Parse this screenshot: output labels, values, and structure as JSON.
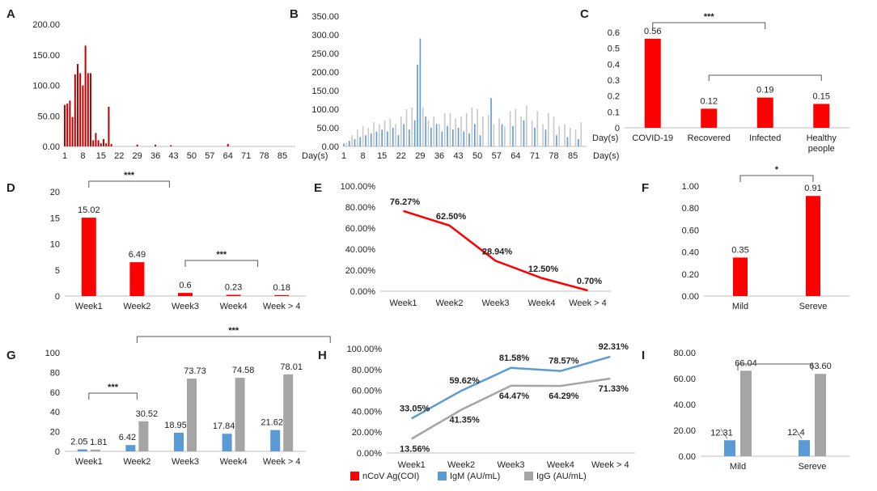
{
  "chart_data": [
    {
      "panel": "A",
      "type": "bar",
      "xlabel": "Day(s)",
      "xticks": [
        "1",
        "8",
        "15",
        "22",
        "29",
        "36",
        "43",
        "50",
        "57",
        "64",
        "71",
        "78",
        "85"
      ],
      "yticks": [
        "0.00",
        "50.00",
        "100.00",
        "150.00",
        "200.00"
      ],
      "ylim": [
        0,
        200
      ],
      "x": [
        1,
        2,
        3,
        4,
        5,
        6,
        7,
        8,
        9,
        10,
        11,
        12,
        13,
        14,
        15,
        16,
        17,
        18,
        19,
        29,
        36,
        42,
        64
      ],
      "values": [
        68,
        70,
        75,
        48,
        118,
        135,
        120,
        100,
        165,
        120,
        120,
        10,
        22,
        10,
        5,
        12,
        5,
        65,
        4,
        3,
        3,
        2,
        4
      ],
      "colors": {
        "bar": "#c00000"
      }
    },
    {
      "panel": "B",
      "type": "bar",
      "xlabel": "Day(s)",
      "xticks": [
        "1",
        "8",
        "15",
        "22",
        "29",
        "36",
        "43",
        "50",
        "57",
        "64",
        "71",
        "78",
        "85"
      ],
      "yticks": [
        "0.00",
        "50.00",
        "100.00",
        "150.00",
        "200.00",
        "250.00",
        "300.00",
        "350.00"
      ],
      "ylim": [
        0,
        350
      ],
      "series": [
        {
          "name": "blue",
          "x": [
            1,
            3,
            5,
            7,
            9,
            11,
            13,
            15,
            17,
            19,
            21,
            23,
            25,
            27,
            28,
            29,
            31,
            33,
            35,
            37,
            39,
            41,
            43,
            45,
            47,
            49,
            51,
            55,
            59,
            63,
            67,
            71,
            75,
            79,
            83,
            87
          ],
          "values": [
            8,
            15,
            20,
            25,
            30,
            35,
            40,
            45,
            40,
            50,
            30,
            60,
            45,
            70,
            220,
            290,
            80,
            50,
            60,
            40,
            55,
            45,
            50,
            40,
            35,
            60,
            30,
            130,
            60,
            55,
            70,
            50,
            45,
            30,
            25,
            20
          ]
        },
        {
          "name": "gray",
          "x": [
            2,
            4,
            6,
            8,
            10,
            12,
            14,
            16,
            18,
            20,
            22,
            24,
            26,
            30,
            32,
            34,
            36,
            38,
            40,
            42,
            44,
            46,
            48,
            50,
            52,
            54,
            56,
            58,
            60,
            62,
            64,
            66,
            68,
            70,
            72,
            74,
            76,
            78,
            80,
            82,
            84,
            86,
            88
          ],
          "values": [
            10,
            30,
            45,
            55,
            50,
            65,
            60,
            70,
            75,
            60,
            80,
            100,
            105,
            105,
            70,
            80,
            60,
            90,
            90,
            75,
            80,
            90,
            105,
            100,
            80,
            85,
            60,
            75,
            55,
            95,
            100,
            80,
            110,
            70,
            95,
            60,
            90,
            80,
            55,
            60,
            50,
            45,
            65
          ]
        }
      ],
      "colors": {
        "blue": "#5b9bd5",
        "gray": "#c8c8c8"
      }
    },
    {
      "panel": "C",
      "type": "bar",
      "xlabel": "Day(s)",
      "categories": [
        "COVID-19",
        "Recovered",
        "Infected",
        "Healthy\npeople"
      ],
      "values": [
        0.56,
        0.12,
        0.19,
        0.15
      ],
      "labels": [
        "0.56",
        "0.12",
        "0.19",
        "0.15"
      ],
      "yticks": [
        "0",
        "0.1",
        "0.2",
        "0.3",
        "0.4",
        "0.5",
        "0.6"
      ],
      "ylim": [
        0,
        0.6
      ],
      "significance": [
        {
          "from": 0,
          "to": 2,
          "text": "***"
        },
        {
          "from": 1,
          "to": 3,
          "text": ""
        }
      ]
    },
    {
      "panel": "D",
      "type": "bar",
      "categories": [
        "Week1",
        "Week2",
        "Week3",
        "Week4",
        "Week > 4"
      ],
      "values": [
        15.02,
        6.49,
        0.6,
        0.23,
        0.18
      ],
      "labels": [
        "15.02",
        "6.49",
        "0.6",
        "0.23",
        "0.18"
      ],
      "yticks": [
        "0",
        "5",
        "10",
        "15",
        "20"
      ],
      "ylim": [
        0,
        20
      ],
      "significance": [
        {
          "from": 0,
          "to": 1,
          "over": 2,
          "text": "***"
        },
        {
          "from": 2,
          "to": 3,
          "over": 4,
          "text": "***"
        }
      ]
    },
    {
      "panel": "E",
      "type": "line",
      "categories": [
        "Week1",
        "Week2",
        "Week3",
        "Week4",
        "Week > 4"
      ],
      "values": [
        76.27,
        62.5,
        28.94,
        12.5,
        0.7
      ],
      "labels": [
        "76.27%",
        "62.50%",
        "28.94%",
        "12.50%",
        "0.70%"
      ],
      "yticks": [
        "0.00%",
        "20.00%",
        "40.00%",
        "60.00%",
        "80.00%",
        "100.00%"
      ],
      "ylim": [
        0,
        100
      ]
    },
    {
      "panel": "F",
      "type": "bar",
      "categories": [
        "Mild",
        "Sereve"
      ],
      "values": [
        0.35,
        0.91
      ],
      "labels": [
        "0.35",
        "0.91"
      ],
      "yticks": [
        "0.00",
        "0.20",
        "0.40",
        "0.60",
        "0.80",
        "1.00"
      ],
      "ylim": [
        0,
        1
      ],
      "significance": [
        {
          "from": 0,
          "to": 1,
          "text": "*"
        }
      ]
    },
    {
      "panel": "G",
      "type": "bar",
      "categories": [
        "Week1",
        "Week2",
        "Week3",
        "Week4",
        "Week > 4"
      ],
      "series": [
        {
          "name": "IgM (AU/mL)",
          "values": [
            2.05,
            6.42,
            18.95,
            17.84,
            21.62
          ],
          "labels": [
            "2.05",
            "6.42",
            "18.95",
            "17.84",
            "21.62"
          ]
        },
        {
          "name": "IgG (AU/mL)",
          "values": [
            1.81,
            30.52,
            73.73,
            74.58,
            78.01
          ],
          "labels": [
            "1.81",
            "30.52",
            "73.73",
            "74.58",
            "78.01"
          ]
        }
      ],
      "yticks": [
        "0",
        "20",
        "40",
        "60",
        "80",
        "100"
      ],
      "ylim": [
        0,
        100
      ],
      "significance": [
        {
          "from": 0,
          "to": 1,
          "text": "***"
        },
        {
          "from": 1,
          "to": 4,
          "over": 3,
          "text": "***"
        }
      ]
    },
    {
      "panel": "H",
      "type": "line",
      "categories": [
        "Week1",
        "Week2",
        "Week3",
        "Week4",
        "Week > 4"
      ],
      "series": [
        {
          "name": "IgM (AU/mL)",
          "values": [
            33.05,
            59.62,
            81.58,
            78.57,
            92.31
          ],
          "labels": [
            "33.05%",
            "59.62%",
            "81.58%",
            "78.57%",
            "92.31%"
          ]
        },
        {
          "name": "IgG (AU/mL)",
          "values": [
            13.56,
            41.35,
            64.47,
            64.29,
            71.33
          ],
          "labels": [
            "13.56%",
            "41.35%",
            "64.47%",
            "64.29%",
            "71.33%"
          ]
        }
      ],
      "yticks": [
        "0.00%",
        "20.00%",
        "40.00%",
        "60.00%",
        "80.00%",
        "100.00%"
      ],
      "ylim": [
        0,
        100
      ]
    },
    {
      "panel": "I",
      "type": "bar",
      "categories": [
        "Mild",
        "Sereve"
      ],
      "series": [
        {
          "name": "IgM (AU/mL)",
          "values": [
            12.31,
            12.4
          ],
          "labels": [
            "12.31",
            "12.4"
          ]
        },
        {
          "name": "IgG (AU/mL)",
          "values": [
            66.04,
            63.6
          ],
          "labels": [
            "66.04",
            "63.60"
          ]
        }
      ],
      "yticks": [
        "0.00",
        "20.00",
        "40.00",
        "60.00",
        "80.00"
      ],
      "ylim": [
        0,
        80
      ],
      "significance": [
        {
          "from": 0,
          "to": 1,
          "text": ""
        }
      ]
    }
  ],
  "legend": {
    "items": [
      {
        "label": "nCoV Ag(COI)",
        "color": "#ff0000"
      },
      {
        "label": "IgM (AU/mL)",
        "color": "#5b9bd5"
      },
      {
        "label": "IgG (AU/mL)",
        "color": "#a5a5a5"
      }
    ]
  },
  "colors": {
    "red": "#ff0000",
    "blue": "#5b9bd5",
    "gray": "#a5a5a5",
    "axis": "#bfbfbf",
    "bracket": "#595959"
  }
}
